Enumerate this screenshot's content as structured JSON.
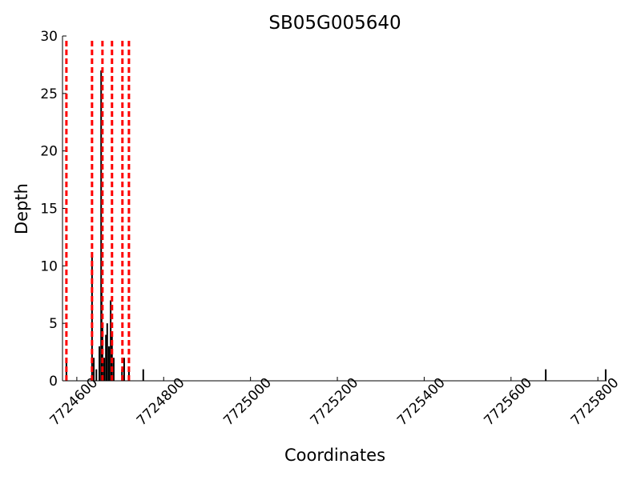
{
  "chart_data": {
    "type": "bar",
    "title": "SB05G005640",
    "x_label": "Coordinates",
    "y_label": "Depth",
    "x": [
      7724576,
      7724635,
      7724639,
      7724645,
      7724652,
      7724656,
      7724657,
      7724659,
      7724663,
      7724667,
      7724670,
      7724674,
      7724678,
      7724681,
      7724685,
      7724704,
      7724709,
      7724720,
      7724753,
      7725680,
      7725818
    ],
    "values": [
      2,
      11,
      2,
      1,
      3,
      27,
      8,
      5,
      2,
      4,
      5,
      3,
      7,
      4,
      2,
      1,
      2,
      1,
      1,
      1,
      1
    ],
    "color": "#000000",
    "vlines": [
      7724576,
      7724635,
      7724659,
      7724681,
      7724705,
      7724720
    ],
    "vline_color": "#ff0000",
    "xlim": [
      7724567,
      7725820
    ],
    "ylim": [
      0,
      30
    ],
    "xticks": [
      7724600,
      7724800,
      7725000,
      7725200,
      7725400,
      7725600,
      7725800
    ],
    "yticks": [
      0,
      5,
      10,
      15,
      20,
      25,
      30
    ]
  }
}
